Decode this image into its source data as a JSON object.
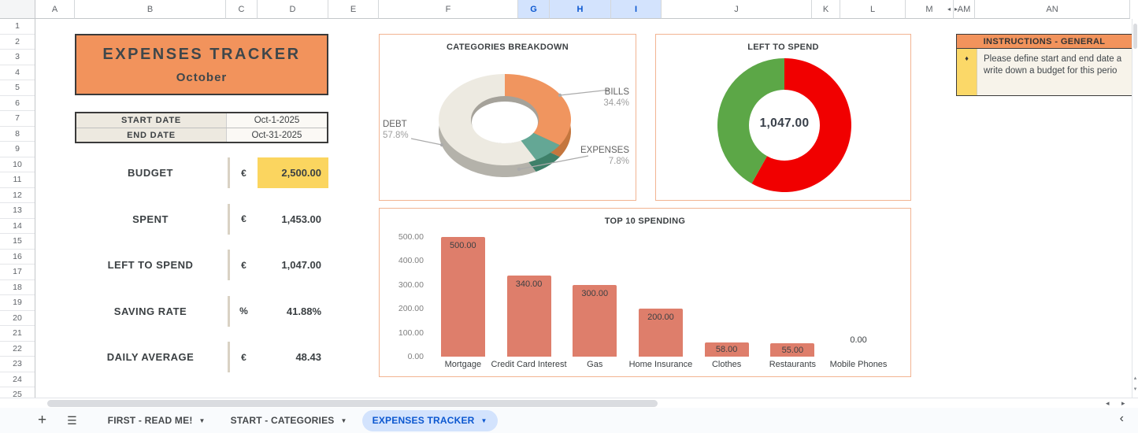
{
  "spreadsheet": {
    "columns": [
      {
        "label": "A"
      },
      {
        "label": "B"
      },
      {
        "label": "C"
      },
      {
        "label": "D"
      },
      {
        "label": "E"
      },
      {
        "label": "F"
      },
      {
        "label": "G",
        "selected": true
      },
      {
        "label": "H",
        "selected": true
      },
      {
        "label": "I",
        "selected": true
      },
      {
        "label": "J"
      },
      {
        "label": "K"
      },
      {
        "label": "L"
      },
      {
        "label": "M",
        "arrow": "left"
      },
      {
        "label": "AM",
        "arrow": "right"
      },
      {
        "label": "AN"
      }
    ],
    "row_count": 25
  },
  "header": {
    "title": "EXPENSES TRACKER",
    "subtitle": "October"
  },
  "dates": {
    "rows": [
      {
        "label": "START DATE",
        "value": "Oct-1-2025"
      },
      {
        "label": "END DATE",
        "value": "Oct-31-2025"
      }
    ]
  },
  "stats": [
    {
      "label": "BUDGET",
      "symbol": "€",
      "value": "2,500.00",
      "highlight": true
    },
    {
      "label": "SPENT",
      "symbol": "€",
      "value": "1,453.00",
      "highlight": false
    },
    {
      "label": "LEFT TO SPEND",
      "symbol": "€",
      "value": "1,047.00",
      "highlight": false
    },
    {
      "label": "SAVING RATE",
      "symbol": "%",
      "value": "41.88%",
      "highlight": false
    },
    {
      "label": "DAILY AVERAGE",
      "symbol": "€",
      "value": "48.43",
      "highlight": false
    }
  ],
  "instructions": {
    "title": "INSTRUCTIONS - GENERAL",
    "bullet": "♦",
    "lines": [
      "Please define start and end date a",
      "write down a budget for this perio"
    ]
  },
  "chart_data": [
    {
      "type": "pie",
      "variant": "donut-3d",
      "title": "CATEGORIES BREAKDOWN",
      "labels": [
        "BILLS",
        "EXPENSES",
        "DEBT"
      ],
      "values": [
        34.4,
        7.8,
        57.8
      ],
      "value_labels": [
        "34.4%",
        "7.8%",
        "57.8%"
      ],
      "colors": [
        "#F0955F",
        "#64A795",
        "#EDEAE1"
      ],
      "side_colors": [
        "#C4763E",
        "#3E8069",
        "#B4B2AA"
      ],
      "legend": "callout-labels"
    },
    {
      "type": "pie",
      "variant": "donut",
      "title": "LEFT TO SPEND",
      "center_label": "1,047.00",
      "values": [
        58.12,
        41.88
      ],
      "colors": [
        "#F10000",
        "#5CA747"
      ]
    },
    {
      "type": "bar",
      "title": "TOP 10 SPENDING",
      "categories": [
        "Mortgage",
        "Credit Card Interest",
        "Gas",
        "Home Insurance",
        "Clothes",
        "Restaurants",
        "Mobile Phones"
      ],
      "values": [
        500,
        340,
        300,
        200,
        58,
        55,
        0
      ],
      "value_labels": [
        "500.00",
        "340.00",
        "300.00",
        "200.00",
        "58.00",
        "55.00",
        "0.00"
      ],
      "bar_color": "#DE7E6B",
      "ylim": [
        0,
        500
      ],
      "yticks": [
        0,
        100,
        200,
        300,
        400,
        500
      ],
      "ytick_labels": [
        "0.00",
        "100.00",
        "200.00",
        "300.00",
        "400.00",
        "500.00"
      ],
      "grid": false
    }
  ],
  "sheet_tabs": {
    "add_label": "+",
    "tabs": [
      {
        "label": "FIRST - READ ME!",
        "active": false
      },
      {
        "label": "START - CATEGORIES",
        "active": false
      },
      {
        "label": "EXPENSES TRACKER",
        "active": true
      }
    ]
  },
  "colors": {
    "accent_orange": "#F2935C",
    "highlight_yellow": "#FBD55F",
    "tab_active_bg": "#D3E3FD",
    "tab_active_text": "#0B57D0",
    "chart_border": "#F2B492"
  }
}
